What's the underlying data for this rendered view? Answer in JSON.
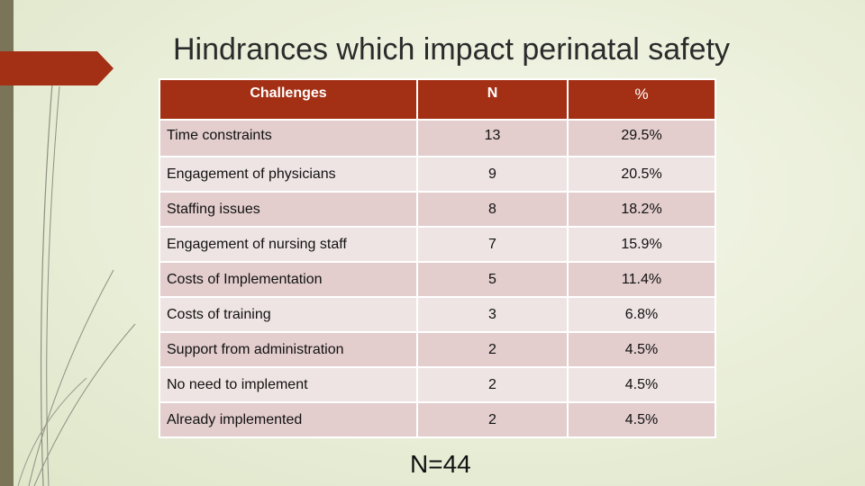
{
  "slide": {
    "title": "Hindrances which impact perinatal safety",
    "footer": "N=44"
  },
  "table": {
    "headers": [
      "Challenges",
      "N",
      "%"
    ],
    "rows": [
      [
        "Time constraints",
        "13",
        "29.5%"
      ],
      [
        "Engagement of physicians",
        "9",
        "20.5%"
      ],
      [
        "Staffing issues",
        "8",
        "18.2%"
      ],
      [
        "Engagement of nursing staff",
        "7",
        "15.9%"
      ],
      [
        "Costs of Implementation",
        "5",
        "11.4%"
      ],
      [
        "Costs of  training",
        "3",
        "6.8%"
      ],
      [
        "Support from administration",
        "2",
        "4.5%"
      ],
      [
        "No need to implement",
        "2",
        "4.5%"
      ],
      [
        "Already implemented",
        "2",
        "4.5%"
      ]
    ]
  },
  "colors": {
    "header_bg": "#a33015",
    "row_odd": "#e3cdcd",
    "row_even": "#efe4e4",
    "accent": "#a33015",
    "side_bar": "#7a7458"
  }
}
